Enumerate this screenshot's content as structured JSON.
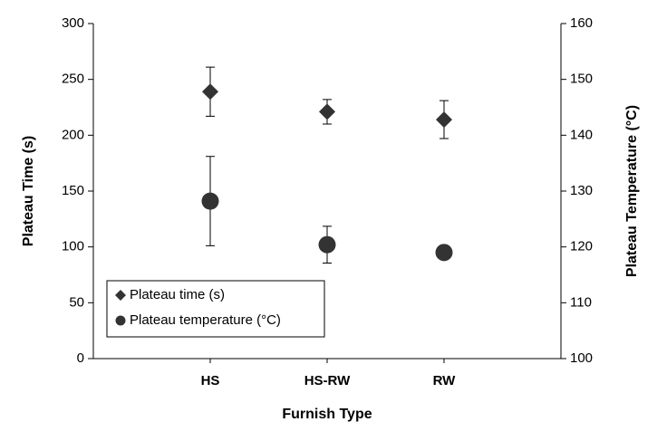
{
  "chart_data": {
    "type": "scatter",
    "x_label": "Furnish Type",
    "y_label": "Plateau Time (s)",
    "y2_label": "Plateau Temperature (°C)",
    "categories": [
      "HS",
      "HS-RW",
      "RW"
    ],
    "ylim": [
      0,
      300
    ],
    "yticks": [
      0,
      50,
      100,
      150,
      200,
      250,
      300
    ],
    "y2lim": [
      100,
      160
    ],
    "y2ticks": [
      100,
      110,
      120,
      130,
      140,
      150,
      160
    ],
    "legend": "lower-left",
    "series": [
      {
        "name": "Plateau time (s)",
        "marker": "diamond",
        "color": "#333333",
        "axis": "y",
        "values": [
          239,
          221,
          214
        ],
        "errors": [
          22,
          11,
          17
        ]
      },
      {
        "name": "Plateau temperature (°C)",
        "marker": "circle",
        "color": "#333333",
        "axis": "y2",
        "values": [
          128.2,
          120.4,
          119.0
        ],
        "errors": [
          8,
          3.3,
          null
        ]
      }
    ]
  }
}
